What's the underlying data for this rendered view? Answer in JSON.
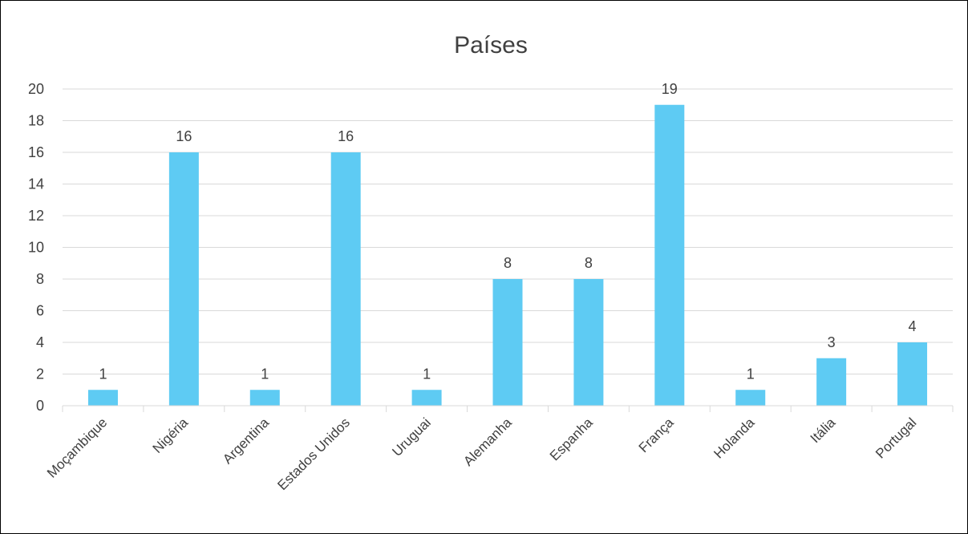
{
  "chart_data": {
    "type": "bar",
    "title": "Países",
    "xlabel": "",
    "ylabel": "",
    "categories": [
      "Moçambique",
      "Nigéria",
      "Argentina",
      "Estados Unidos",
      "Uruguai",
      "Alemanha",
      "Espanha",
      "França",
      "Holanda",
      "Itália",
      "Portugal"
    ],
    "values": [
      1,
      16,
      1,
      16,
      1,
      8,
      8,
      19,
      1,
      3,
      4
    ],
    "ylim": [
      0,
      20
    ],
    "yticks": [
      0,
      2,
      4,
      6,
      8,
      10,
      12,
      14,
      16,
      18,
      20
    ],
    "grid": true,
    "legend": "none",
    "bar_color": "#5ecbf3",
    "grid_color": "#d9d9d9",
    "text_color": "#404040"
  }
}
